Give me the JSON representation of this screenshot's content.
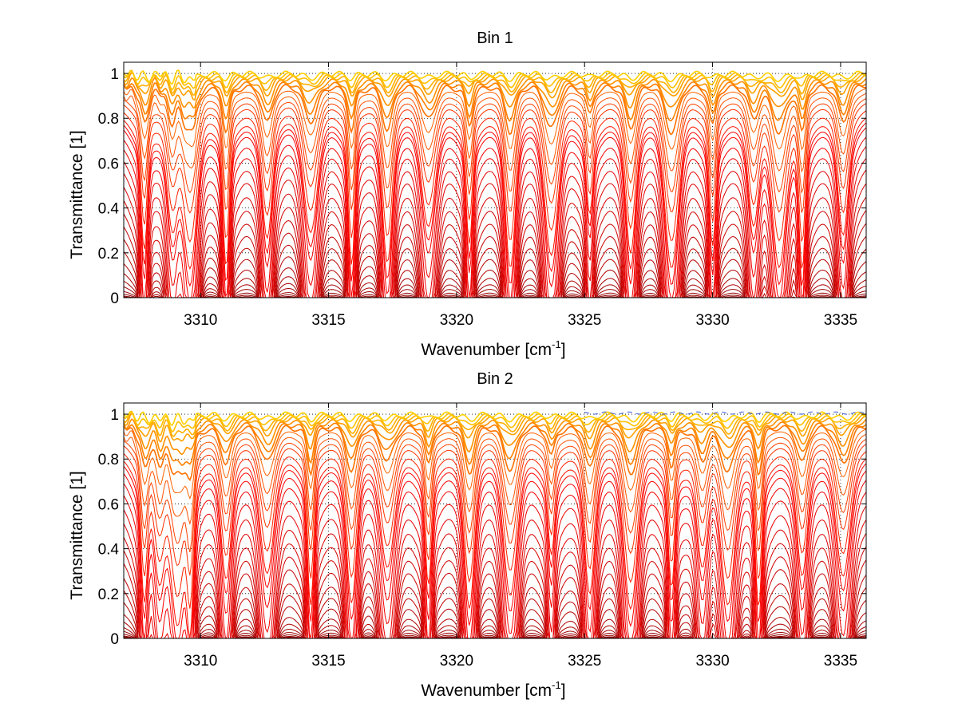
{
  "colors": {
    "background": "#ffffff",
    "axes": "#000000",
    "grid": "#000000",
    "series_low": "#7f0000",
    "series_mid": "#ff0000",
    "series_high": "#ffd000",
    "series_extra": "#3050d0"
  },
  "chart_data": [
    {
      "type": "line",
      "title": "Bin 1",
      "xlabel_main": "Wavenumber [cm",
      "xlabel_sup": "-1",
      "xlabel_tail": "]",
      "ylabel": "Transmittance [1]",
      "xlim": [
        3307,
        3336
      ],
      "ylim": [
        0,
        1.05
      ],
      "xticks": [
        3310,
        3315,
        3320,
        3325,
        3330,
        3335
      ],
      "xtick_labels": [
        "3310",
        "3315",
        "3320",
        "3325",
        "3330",
        "3335"
      ],
      "yticks": [
        0,
        0.2,
        0.4,
        0.6,
        0.8,
        1
      ],
      "ytick_labels": [
        "0",
        "0.2",
        "0.4",
        "0.6",
        "0.8",
        "1"
      ],
      "grid": "dotted",
      "series_count": 34,
      "series_baselines": [
        0.0,
        0.005,
        0.01,
        0.02,
        0.035,
        0.06,
        0.09,
        0.13,
        0.18,
        0.24,
        0.3,
        0.36,
        0.42,
        0.48,
        0.54,
        0.6,
        0.65,
        0.7,
        0.74,
        0.78,
        0.8,
        0.82,
        0.85,
        0.88,
        0.9,
        0.92,
        0.94,
        0.955,
        0.965,
        0.975,
        0.985,
        0.99,
        0.995,
        1.0
      ],
      "absorption_lines": [
        3307.8,
        3308.9,
        3309.6,
        3311.0,
        3312.6,
        3314.3,
        3315.9,
        3317.3,
        3318.9,
        3320.5,
        3322.1,
        3323.7,
        3325.2,
        3326.8,
        3328.4,
        3330.0,
        3331.6,
        3332.6,
        3333.5,
        3335.1
      ]
    },
    {
      "type": "line",
      "title": "Bin 2",
      "xlabel_main": "Wavenumber [cm",
      "xlabel_sup": "-1",
      "xlabel_tail": "]",
      "ylabel": "Transmittance [1]",
      "xlim": [
        3307,
        3336
      ],
      "ylim": [
        0,
        1.05
      ],
      "xticks": [
        3310,
        3315,
        3320,
        3325,
        3330,
        3335
      ],
      "xtick_labels": [
        "3310",
        "3315",
        "3320",
        "3325",
        "3330",
        "3335"
      ],
      "yticks": [
        0,
        0.2,
        0.4,
        0.6,
        0.8,
        1
      ],
      "ytick_labels": [
        "0",
        "0.2",
        "0.4",
        "0.6",
        "0.8",
        "1"
      ],
      "grid": "dotted",
      "series_count": 34,
      "series_baselines": [
        0.0,
        0.005,
        0.01,
        0.015,
        0.025,
        0.04,
        0.06,
        0.09,
        0.13,
        0.19,
        0.25,
        0.31,
        0.38,
        0.44,
        0.5,
        0.56,
        0.62,
        0.68,
        0.73,
        0.77,
        0.8,
        0.82,
        0.85,
        0.88,
        0.9,
        0.92,
        0.94,
        0.955,
        0.965,
        0.975,
        0.985,
        0.99,
        0.995,
        1.0
      ],
      "absorption_lines": [
        3307.8,
        3308.4,
        3309.1,
        3309.6,
        3311.0,
        3312.6,
        3314.3,
        3315.9,
        3317.3,
        3318.9,
        3320.5,
        3322.1,
        3323.7,
        3325.2,
        3326.8,
        3328.4,
        3329.6,
        3330.6,
        3331.8,
        3333.5,
        3335.1
      ]
    }
  ]
}
